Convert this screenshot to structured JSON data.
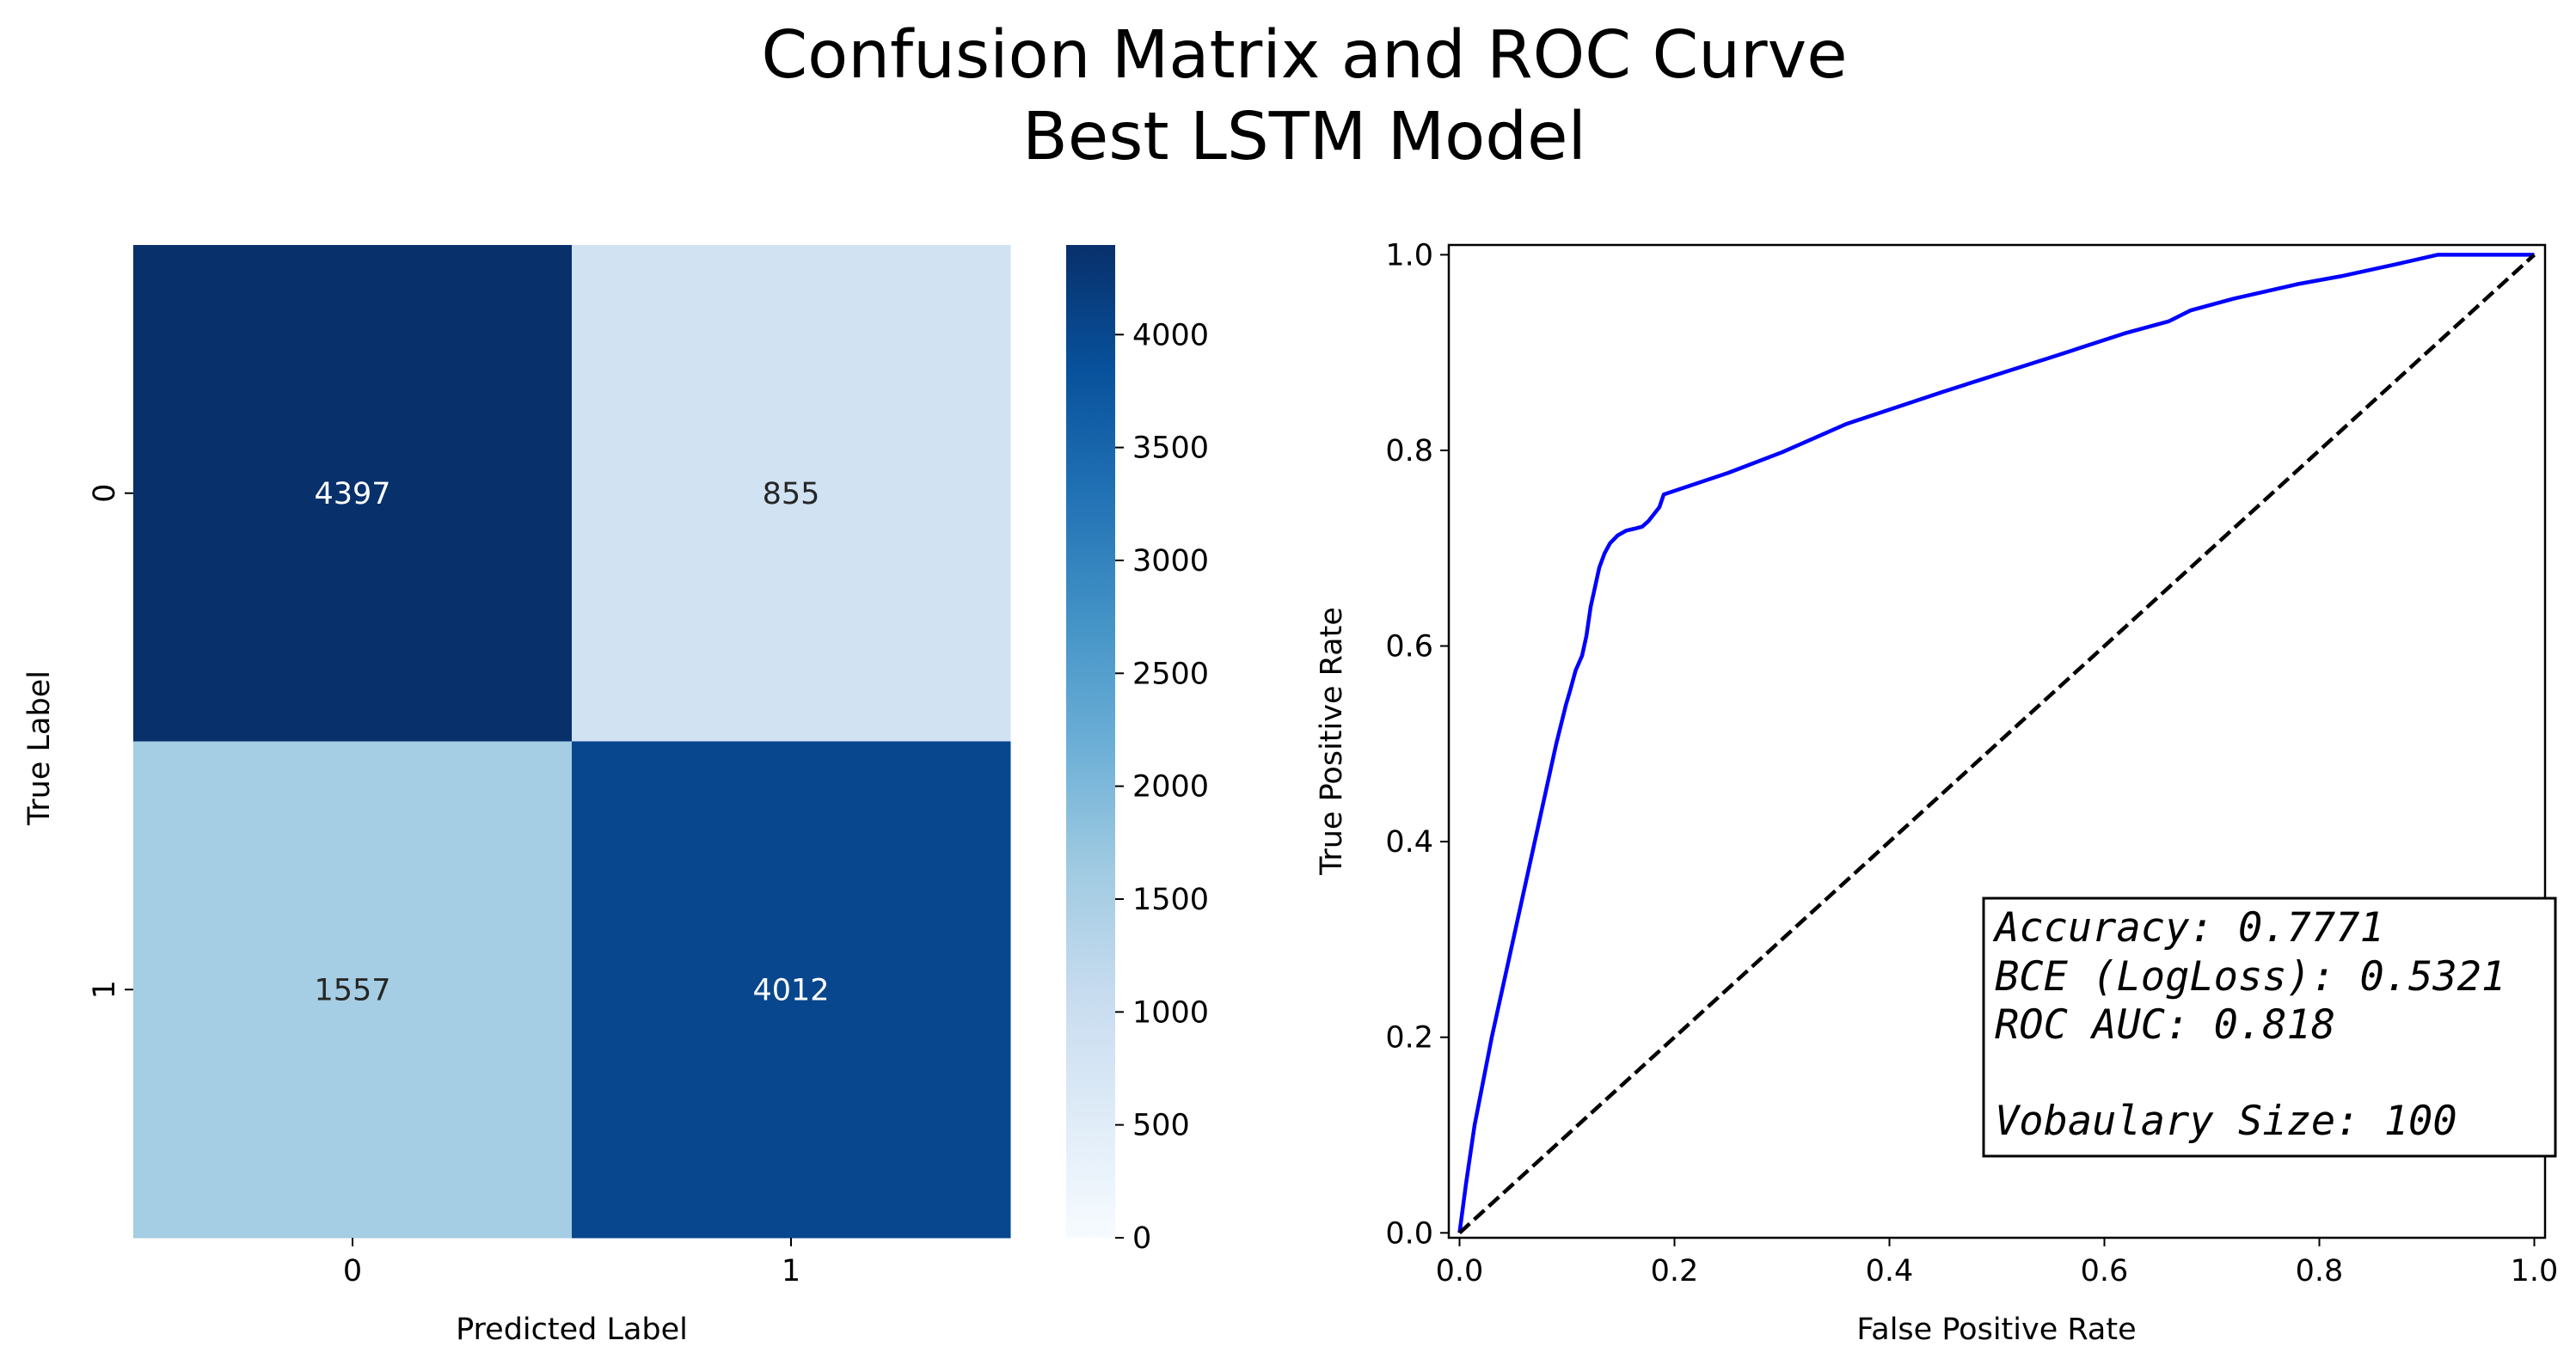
{
  "figure": {
    "title_line1": "Confusion Matrix and ROC Curve",
    "title_line2": "Best LSTM Model"
  },
  "chart_data": [
    {
      "type": "heatmap",
      "title": "",
      "xlabel": "Predicted Label",
      "ylabel": "True Label",
      "x_categories": [
        "0",
        "1"
      ],
      "y_categories": [
        "0",
        "1"
      ],
      "values": [
        [
          4397,
          855
        ],
        [
          1557,
          4012
        ]
      ],
      "colormap": "Blues",
      "colorbar": {
        "min": 0,
        "max": 4397,
        "ticks": [
          0,
          500,
          1000,
          1500,
          2000,
          2500,
          3000,
          3500,
          4000
        ]
      }
    },
    {
      "type": "line",
      "title": "",
      "xlabel": "False Positive Rate",
      "ylabel": "True Positive Rate",
      "xlim": [
        -0.01,
        1.01
      ],
      "ylim": [
        -0.005,
        1.01
      ],
      "xticks": [
        0.0,
        0.2,
        0.4,
        0.6,
        0.8,
        1.0
      ],
      "yticks": [
        0.0,
        0.2,
        0.4,
        0.6,
        0.8,
        1.0
      ],
      "grid": false,
      "series": [
        {
          "role": "roc",
          "color": "#0000ff",
          "style": "solid",
          "x": [
            0.0,
            0.006,
            0.014,
            0.03,
            0.05,
            0.07,
            0.09,
            0.099,
            0.103,
            0.108,
            0.114,
            0.118,
            0.12,
            0.122,
            0.126,
            0.13,
            0.135,
            0.14,
            0.147,
            0.155,
            0.163,
            0.17,
            0.176,
            0.181,
            0.186,
            0.19,
            0.25,
            0.3,
            0.36,
            0.45,
            0.55,
            0.62,
            0.66,
            0.68,
            0.72,
            0.78,
            0.82,
            0.87,
            0.91,
            0.94,
            1.0
          ],
          "y": [
            0.0,
            0.05,
            0.11,
            0.2,
            0.3,
            0.4,
            0.5,
            0.54,
            0.555,
            0.575,
            0.59,
            0.61,
            0.625,
            0.64,
            0.66,
            0.68,
            0.695,
            0.705,
            0.713,
            0.718,
            0.72,
            0.722,
            0.728,
            0.735,
            0.742,
            0.755,
            0.777,
            0.798,
            0.827,
            0.86,
            0.895,
            0.92,
            0.932,
            0.943,
            0.955,
            0.97,
            0.978,
            0.99,
            1.0,
            1.0,
            1.0
          ]
        },
        {
          "role": "chance",
          "color": "#000000",
          "style": "dashed",
          "x": [
            0.0,
            1.0
          ],
          "y": [
            0.0,
            1.0
          ]
        }
      ],
      "annotation_lines": [
        "Accuracy: 0.7771",
        "BCE (LogLoss): 0.5321",
        "ROC AUC: 0.818",
        "",
        "Vobaulary Size: 100"
      ]
    }
  ]
}
